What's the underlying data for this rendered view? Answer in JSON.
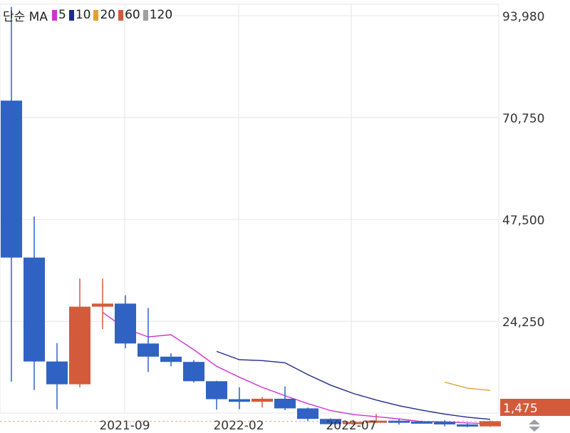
{
  "legend": {
    "label": "단순 MA",
    "items": [
      {
        "period": "5",
        "color": "#cc33cc"
      },
      {
        "period": "10",
        "color": "#1f2a8a"
      },
      {
        "period": "20",
        "color": "#e0a030"
      },
      {
        "period": "60",
        "color": "#d45a3c"
      },
      {
        "period": "120",
        "color": "#a0a0a0"
      }
    ]
  },
  "chart_data": {
    "type": "candlestick",
    "y_axis_ticks": [
      "93,980",
      "70,750",
      "47,500",
      "24,250"
    ],
    "x_axis_ticks": [
      "2021-09",
      "2022-02",
      "2022-07"
    ],
    "last_price_label": "1,475",
    "ylim": [
      0,
      93980
    ],
    "colors": {
      "up": "#d45a3c",
      "down": "#2f62c3",
      "grid": "#e6e6e6"
    },
    "candles": [
      {
        "open": 74600,
        "high": 96000,
        "low": 10500,
        "close": 38800
      },
      {
        "open": 38800,
        "high": 48200,
        "low": 8600,
        "close": 15100
      },
      {
        "open": 15100,
        "high": 19300,
        "low": 4200,
        "close": 9900
      },
      {
        "open": 9900,
        "high": 34000,
        "low": 9200,
        "close": 27600
      },
      {
        "open": 27600,
        "high": 34000,
        "low": 22500,
        "close": 28300
      },
      {
        "open": 28300,
        "high": 30200,
        "low": 18100,
        "close": 19200
      },
      {
        "open": 19200,
        "high": 27300,
        "low": 12700,
        "close": 16200
      },
      {
        "open": 16200,
        "high": 17000,
        "low": 14000,
        "close": 15000
      },
      {
        "open": 15000,
        "high": 15400,
        "low": 10300,
        "close": 10600
      },
      {
        "open": 10600,
        "high": 10700,
        "low": 4100,
        "close": 6500
      },
      {
        "open": 6500,
        "high": 9200,
        "low": 4200,
        "close": 5900
      },
      {
        "open": 5900,
        "high": 7000,
        "low": 4600,
        "close": 6600
      },
      {
        "open": 6600,
        "high": 9400,
        "low": 4000,
        "close": 4400
      },
      {
        "open": 4400,
        "high": 4600,
        "low": 1500,
        "close": 2000
      },
      {
        "open": 2000,
        "high": 2100,
        "low": 300,
        "close": 800
      },
      {
        "open": 800,
        "high": 1800,
        "low": 600,
        "close": 1300
      },
      {
        "open": 1300,
        "high": 3100,
        "low": 1100,
        "close": 1600
      },
      {
        "open": 1600,
        "high": 2000,
        "low": 700,
        "close": 1400
      },
      {
        "open": 1400,
        "high": 1600,
        "low": 1200,
        "close": 1350
      },
      {
        "open": 1350,
        "high": 1700,
        "low": 300,
        "close": 750
      },
      {
        "open": 750,
        "high": 950,
        "low": 100,
        "close": 300
      },
      {
        "open": 300,
        "high": 1600,
        "low": 200,
        "close": 1475
      }
    ],
    "ma": [
      {
        "period": "5",
        "values": [
          null,
          null,
          null,
          null,
          26300,
          22600,
          20700,
          21200,
          17800,
          14000,
          11500,
          9200,
          7300,
          5500,
          3900,
          3000,
          2500,
          2000,
          1400,
          1300,
          1100,
          900
        ]
      },
      {
        "period": "10",
        "values": [
          null,
          null,
          null,
          null,
          null,
          null,
          null,
          null,
          null,
          17400,
          15500,
          15300,
          14800,
          12100,
          9700,
          7800,
          6300,
          5000,
          4000,
          3100,
          2400,
          1900
        ]
      },
      {
        "period": "20",
        "values": [
          null,
          null,
          null,
          null,
          null,
          null,
          null,
          null,
          null,
          null,
          null,
          null,
          null,
          null,
          null,
          null,
          null,
          null,
          null,
          10400,
          9000,
          8500
        ]
      }
    ]
  }
}
